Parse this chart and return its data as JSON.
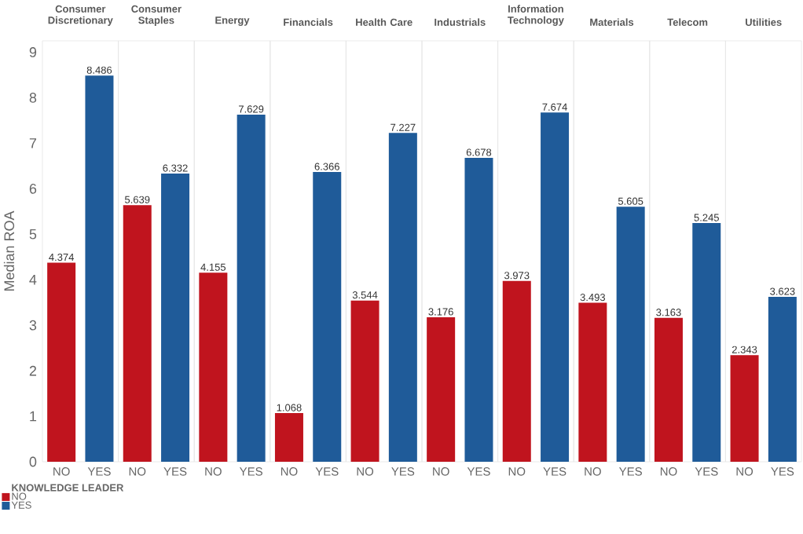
{
  "chart_data": [
    {
      "type": "bar",
      "title": "Consumer Discretionary",
      "ylabel": "Median ROA",
      "categories": [
        "NO",
        "YES"
      ],
      "ylim": [
        0,
        9.25
      ],
      "yticks": [
        0,
        1,
        2,
        3,
        4,
        5,
        6,
        7,
        8,
        9
      ],
      "data_labels": true,
      "legend": "bottom left",
      "legend_title": "KNOWLEDGE LEADER",
      "series": [
        {
          "name": "NO",
          "color": "#c0141e",
          "values": [
            4.374,
            null
          ]
        },
        {
          "name": "YES",
          "color": "#1f5b99",
          "values": [
            null,
            8.486
          ]
        }
      ]
    },
    {
      "type": "bar",
      "title": "Consumer Staples",
      "categories": [
        "NO",
        "YES"
      ],
      "ylim": [
        0,
        9.25
      ],
      "yticks": [
        0,
        1,
        2,
        3,
        4,
        5,
        6,
        7,
        8,
        9
      ],
      "tick_labels": "x",
      "data_labels": true,
      "series": [
        {
          "color": "#c0141e",
          "values": [
            5.639,
            null
          ]
        },
        {
          "color": "#1f5b99",
          "values": [
            null,
            6.332
          ]
        }
      ]
    },
    {
      "type": "bar",
      "title": "Energy",
      "categories": [
        "NO",
        "YES"
      ],
      "ylim": [
        0,
        9.25
      ],
      "yticks": [
        0,
        1,
        2,
        3,
        4,
        5,
        6,
        7,
        8,
        9
      ],
      "tick_labels": "x",
      "data_labels": true,
      "series": [
        {
          "color": "#c0141e",
          "values": [
            4.155,
            null
          ]
        },
        {
          "color": "#1f5b99",
          "values": [
            null,
            7.629
          ]
        }
      ]
    },
    {
      "type": "bar",
      "title": "Financials",
      "categories": [
        "NO",
        "YES"
      ],
      "ylim": [
        0,
        9.25
      ],
      "yticks": [
        0,
        1,
        2,
        3,
        4,
        5,
        6,
        7,
        8,
        9
      ],
      "tick_labels": "x",
      "data_labels": true,
      "series": [
        {
          "color": "#c0141e",
          "values": [
            1.068,
            null
          ]
        },
        {
          "color": "#1f5b99",
          "values": [
            null,
            6.366
          ]
        }
      ]
    },
    {
      "type": "bar",
      "title": "Health Care",
      "categories": [
        "NO",
        "YES"
      ],
      "ylim": [
        0,
        9.25
      ],
      "yticks": [
        0,
        1,
        2,
        3,
        4,
        5,
        6,
        7,
        8,
        9
      ],
      "tick_labels": "x",
      "data_labels": true,
      "series": [
        {
          "color": "#c0141e",
          "values": [
            3.544,
            null
          ]
        },
        {
          "color": "#1f5b99",
          "values": [
            null,
            7.227
          ]
        }
      ]
    },
    {
      "type": "bar",
      "title": "Industrials",
      "categories": [
        "NO",
        "YES"
      ],
      "ylim": [
        0,
        9.25
      ],
      "yticks": [
        0,
        1,
        2,
        3,
        4,
        5,
        6,
        7,
        8,
        9
      ],
      "tick_labels": "x",
      "data_labels": true,
      "series": [
        {
          "color": "#c0141e",
          "values": [
            3.176,
            null
          ]
        },
        {
          "color": "#1f5b99",
          "values": [
            null,
            6.678
          ]
        }
      ]
    },
    {
      "type": "bar",
      "title": "Information Technology",
      "categories": [
        "NO",
        "YES"
      ],
      "ylim": [
        0,
        9.25
      ],
      "yticks": [
        0,
        1,
        2,
        3,
        4,
        5,
        6,
        7,
        8,
        9
      ],
      "tick_labels": "x",
      "data_labels": true,
      "series": [
        {
          "color": "#c0141e",
          "values": [
            3.973,
            null
          ]
        },
        {
          "color": "#1f5b99",
          "values": [
            null,
            7.674
          ]
        }
      ]
    },
    {
      "type": "bar",
      "title": "Materials",
      "categories": [
        "NO",
        "YES"
      ],
      "ylim": [
        0,
        9.25
      ],
      "yticks": [
        0,
        1,
        2,
        3,
        4,
        5,
        6,
        7,
        8,
        9
      ],
      "tick_labels": "x",
      "data_labels": true,
      "series": [
        {
          "color": "#c0141e",
          "values": [
            3.493,
            null
          ]
        },
        {
          "color": "#1f5b99",
          "values": [
            null,
            5.605
          ]
        }
      ]
    },
    {
      "type": "bar",
      "title": "Telecom",
      "categories": [
        "NO",
        "YES"
      ],
      "ylim": [
        0,
        9.25
      ],
      "yticks": [
        0,
        1,
        2,
        3,
        4,
        5,
        6,
        7,
        8,
        9
      ],
      "tick_labels": "x",
      "data_labels": true,
      "series": [
        {
          "color": "#c0141e",
          "values": [
            3.163,
            null
          ]
        },
        {
          "color": "#1f5b99",
          "values": [
            null,
            5.245
          ]
        }
      ]
    },
    {
      "type": "bar",
      "title": "Utilities",
      "categories": [
        "NO",
        "YES"
      ],
      "ylim": [
        0,
        9.25
      ],
      "yticks": [
        0,
        1,
        2,
        3,
        4,
        5,
        6,
        7,
        8,
        9
      ],
      "tick_labels": "x",
      "data_labels": true,
      "series": [
        {
          "color": "#c0141e",
          "values": [
            2.343,
            null
          ]
        },
        {
          "color": "#1f5b99",
          "values": [
            null,
            3.623
          ]
        }
      ]
    }
  ]
}
